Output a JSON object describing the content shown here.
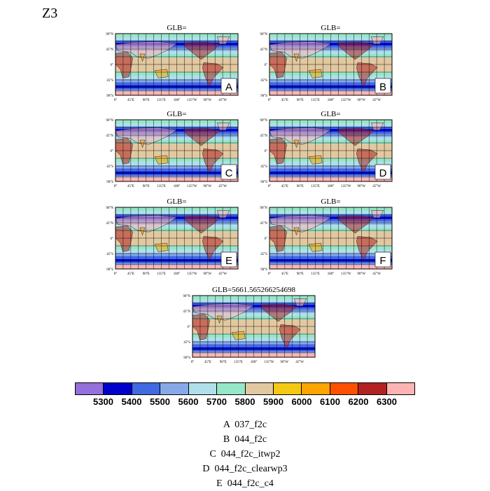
{
  "figure": {
    "title": "Z3"
  },
  "chart_data": {
    "type": "heatmap",
    "variable": "Z3",
    "panels": [
      {
        "label": "A",
        "title": "GLB="
      },
      {
        "label": "B",
        "title": "GLB="
      },
      {
        "label": "C",
        "title": "GLB="
      },
      {
        "label": "D",
        "title": "GLB="
      },
      {
        "label": "E",
        "title": "GLB="
      },
      {
        "label": "F",
        "title": "GLB="
      },
      {
        "label": "",
        "title": "GLB=5661.565266254698"
      }
    ],
    "lat_ticks": [
      "90°N",
      "45°N",
      "0°",
      "45°S",
      "90°S"
    ],
    "lon_ticks": [
      "0°",
      "45°E",
      "90°E",
      "135°E",
      "180°",
      "135°W",
      "90°W",
      "45°W"
    ],
    "colorbar": {
      "levels": [
        "5300",
        "5400",
        "5500",
        "5600",
        "5700",
        "5800",
        "5900",
        "6000",
        "6100",
        "6200",
        "6300"
      ],
      "colors": [
        "#9370db",
        "#0000cd",
        "#4169e1",
        "#87a9ea",
        "#afe0ea",
        "#96e6c8",
        "#e2c8a0",
        "#f5c814",
        "#ffa500",
        "#ff5000",
        "#b22222",
        "#ffb4b4"
      ]
    },
    "legend_items": [
      {
        "letter": "A",
        "name": "037_f2c"
      },
      {
        "letter": "B",
        "name": "044_f2c"
      },
      {
        "letter": "C",
        "name": "044_f2c_itwp2"
      },
      {
        "letter": "D",
        "name": "044_f2c_clearwp3"
      },
      {
        "letter": "E",
        "name": "044_f2c_c4"
      }
    ]
  }
}
